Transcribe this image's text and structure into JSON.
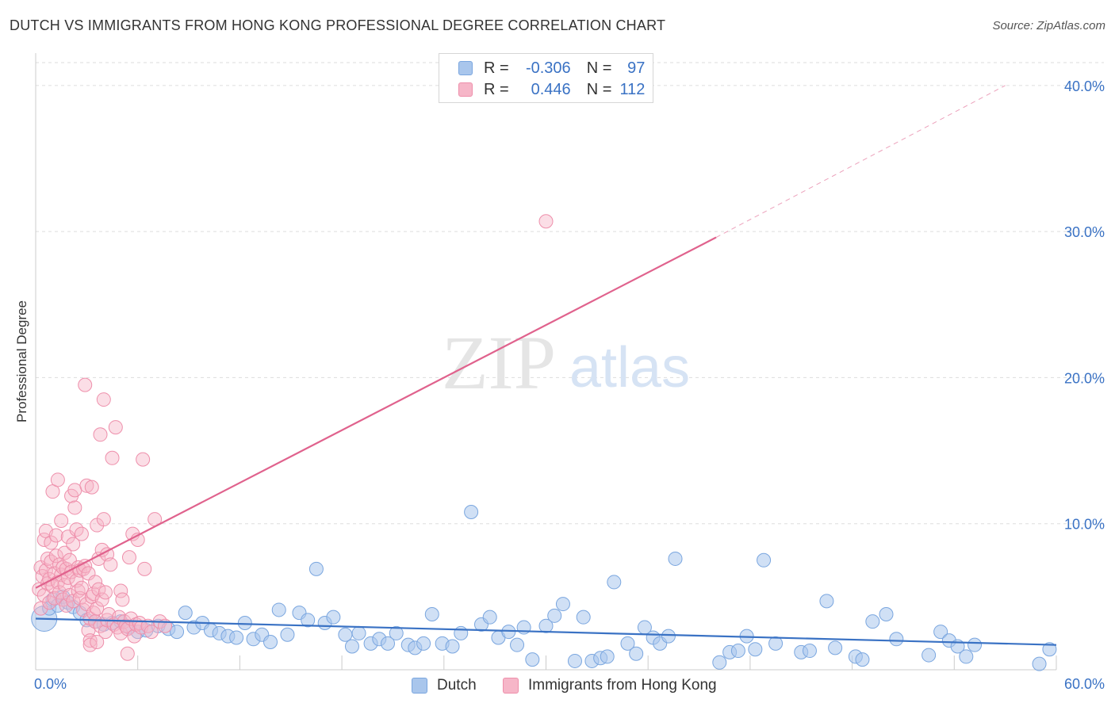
{
  "title": "DUTCH VS IMMIGRANTS FROM HONG KONG PROFESSIONAL DEGREE CORRELATION CHART",
  "source": "Source: ZipAtlas.com",
  "watermark": {
    "zip": "ZIP",
    "atlas": "atlas"
  },
  "legend": {
    "r_label": "R =",
    "n_label": "N =",
    "dutch": {
      "r": "-0.306",
      "n": "97"
    },
    "hk": {
      "r": "0.446",
      "n": "112"
    }
  },
  "colors": {
    "dutch_fill": "#a9c6ec",
    "dutch_stroke": "#7aa6df",
    "dutch_line": "#3a72c4",
    "hk_fill": "#f6b6c8",
    "hk_stroke": "#ee8fab",
    "hk_line": "#e0628d",
    "axis_label": "#3a72c4",
    "grid": "#dddddd"
  },
  "chart_data": {
    "type": "scatter",
    "title": "DUTCH VS IMMIGRANTS FROM HONG KONG PROFESSIONAL DEGREE CORRELATION CHART",
    "xlabel": "",
    "ylabel": "Professional Degree",
    "xlim": [
      0,
      60
    ],
    "ylim": [
      0,
      42
    ],
    "x_tick_labels": [
      "0.0%",
      "60.0%"
    ],
    "y_ticks": [
      10,
      20,
      30,
      40
    ],
    "y_tick_labels": [
      "10.0%",
      "20.0%",
      "30.0%",
      "40.0%"
    ],
    "grid": true,
    "legend_entries": [
      "Dutch",
      "Immigrants from Hong Kong"
    ],
    "series": [
      {
        "name": "Dutch",
        "r": -0.306,
        "n": 97,
        "trend": {
          "x0": 0,
          "y0": 3.5,
          "x1": 60,
          "y1": 1.7
        },
        "points": [
          {
            "x": 0.5,
            "y": 3.5,
            "big": true
          },
          {
            "x": 0.8,
            "y": 4.2
          },
          {
            "x": 1.0,
            "y": 4.8
          },
          {
            "x": 1.3,
            "y": 4.4
          },
          {
            "x": 1.6,
            "y": 5.0
          },
          {
            "x": 1.9,
            "y": 4.6
          },
          {
            "x": 2.2,
            "y": 4.3
          },
          {
            "x": 2.6,
            "y": 3.9
          },
          {
            "x": 3.0,
            "y": 3.4
          },
          {
            "x": 3.5,
            "y": 3.3
          },
          {
            "x": 4.0,
            "y": 3.1
          },
          {
            "x": 4.5,
            "y": 3.2
          },
          {
            "x": 5.0,
            "y": 3.3
          },
          {
            "x": 5.5,
            "y": 2.9
          },
          {
            "x": 6.0,
            "y": 2.6
          },
          {
            "x": 6.5,
            "y": 2.7
          },
          {
            "x": 7.2,
            "y": 3.0
          },
          {
            "x": 7.8,
            "y": 2.8
          },
          {
            "x": 8.3,
            "y": 2.6
          },
          {
            "x": 8.8,
            "y": 3.9
          },
          {
            "x": 9.3,
            "y": 2.9
          },
          {
            "x": 9.8,
            "y": 3.2
          },
          {
            "x": 10.3,
            "y": 2.7
          },
          {
            "x": 10.8,
            "y": 2.5
          },
          {
            "x": 11.3,
            "y": 2.3
          },
          {
            "x": 11.8,
            "y": 2.2
          },
          {
            "x": 12.3,
            "y": 3.2
          },
          {
            "x": 12.8,
            "y": 2.1
          },
          {
            "x": 13.3,
            "y": 2.4
          },
          {
            "x": 13.8,
            "y": 1.9
          },
          {
            "x": 14.3,
            "y": 4.1
          },
          {
            "x": 14.8,
            "y": 2.4
          },
          {
            "x": 15.5,
            "y": 3.9
          },
          {
            "x": 16.0,
            "y": 3.4
          },
          {
            "x": 16.5,
            "y": 6.9
          },
          {
            "x": 17.0,
            "y": 3.2
          },
          {
            "x": 17.5,
            "y": 3.6
          },
          {
            "x": 18.2,
            "y": 2.4
          },
          {
            "x": 18.6,
            "y": 1.6
          },
          {
            "x": 19.0,
            "y": 2.5
          },
          {
            "x": 19.7,
            "y": 1.8
          },
          {
            "x": 20.2,
            "y": 2.1
          },
          {
            "x": 20.7,
            "y": 1.8
          },
          {
            "x": 21.2,
            "y": 2.5
          },
          {
            "x": 21.9,
            "y": 1.7
          },
          {
            "x": 22.3,
            "y": 1.5
          },
          {
            "x": 22.8,
            "y": 1.8
          },
          {
            "x": 23.3,
            "y": 3.8
          },
          {
            "x": 23.9,
            "y": 1.8
          },
          {
            "x": 24.5,
            "y": 1.6
          },
          {
            "x": 25.0,
            "y": 2.5
          },
          {
            "x": 25.6,
            "y": 10.8
          },
          {
            "x": 26.2,
            "y": 3.1
          },
          {
            "x": 26.7,
            "y": 3.6
          },
          {
            "x": 27.2,
            "y": 2.2
          },
          {
            "x": 27.8,
            "y": 2.6
          },
          {
            "x": 28.3,
            "y": 1.7
          },
          {
            "x": 28.7,
            "y": 2.9
          },
          {
            "x": 29.2,
            "y": 0.7
          },
          {
            "x": 30.0,
            "y": 3.0
          },
          {
            "x": 30.5,
            "y": 3.7
          },
          {
            "x": 31.0,
            "y": 4.5
          },
          {
            "x": 31.7,
            "y": 0.6
          },
          {
            "x": 32.2,
            "y": 3.6
          },
          {
            "x": 32.7,
            "y": 0.6
          },
          {
            "x": 33.2,
            "y": 0.8
          },
          {
            "x": 33.6,
            "y": 0.9
          },
          {
            "x": 34.0,
            "y": 6.0
          },
          {
            "x": 34.8,
            "y": 1.8
          },
          {
            "x": 35.3,
            "y": 1.1
          },
          {
            "x": 35.8,
            "y": 2.9
          },
          {
            "x": 36.3,
            "y": 2.2
          },
          {
            "x": 36.7,
            "y": 1.8
          },
          {
            "x": 37.2,
            "y": 2.3
          },
          {
            "x": 37.6,
            "y": 7.6
          },
          {
            "x": 40.2,
            "y": 0.5
          },
          {
            "x": 40.8,
            "y": 1.2
          },
          {
            "x": 41.3,
            "y": 1.3
          },
          {
            "x": 41.8,
            "y": 2.3
          },
          {
            "x": 42.3,
            "y": 1.4
          },
          {
            "x": 42.8,
            "y": 7.5
          },
          {
            "x": 43.5,
            "y": 1.8
          },
          {
            "x": 45.0,
            "y": 1.2
          },
          {
            "x": 45.5,
            "y": 1.3
          },
          {
            "x": 46.5,
            "y": 4.7
          },
          {
            "x": 47.0,
            "y": 1.5
          },
          {
            "x": 48.2,
            "y": 0.9
          },
          {
            "x": 48.6,
            "y": 0.7
          },
          {
            "x": 49.2,
            "y": 3.3
          },
          {
            "x": 50.0,
            "y": 3.8
          },
          {
            "x": 50.6,
            "y": 2.1
          },
          {
            "x": 52.5,
            "y": 1.0
          },
          {
            "x": 53.2,
            "y": 2.6
          },
          {
            "x": 53.7,
            "y": 2.0
          },
          {
            "x": 54.2,
            "y": 1.6
          },
          {
            "x": 54.7,
            "y": 0.9
          },
          {
            "x": 55.2,
            "y": 1.7
          },
          {
            "x": 59.0,
            "y": 0.4
          },
          {
            "x": 59.6,
            "y": 1.4
          }
        ]
      },
      {
        "name": "Immigrants from Hong Kong",
        "r": 0.446,
        "n": 112,
        "trend": {
          "x0": 0,
          "y0": 5.6,
          "x1": 40,
          "y1": 29.6
        },
        "trend_extension": {
          "x0": 40,
          "y0": 29.6,
          "x1": 57,
          "y1": 40.0
        },
        "points": [
          {
            "x": 0.2,
            "y": 5.5
          },
          {
            "x": 0.3,
            "y": 7.0
          },
          {
            "x": 0.3,
            "y": 4.2
          },
          {
            "x": 0.4,
            "y": 6.4
          },
          {
            "x": 0.5,
            "y": 5.1
          },
          {
            "x": 0.5,
            "y": 8.9
          },
          {
            "x": 0.6,
            "y": 6.8
          },
          {
            "x": 0.6,
            "y": 9.5
          },
          {
            "x": 0.7,
            "y": 5.9
          },
          {
            "x": 0.7,
            "y": 7.6
          },
          {
            "x": 0.8,
            "y": 6.2
          },
          {
            "x": 0.8,
            "y": 4.6
          },
          {
            "x": 0.9,
            "y": 7.4
          },
          {
            "x": 0.9,
            "y": 8.7
          },
          {
            "x": 1.0,
            "y": 5.7
          },
          {
            "x": 1.0,
            "y": 12.2
          },
          {
            "x": 1.1,
            "y": 6.6
          },
          {
            "x": 1.1,
            "y": 4.9
          },
          {
            "x": 1.2,
            "y": 7.8
          },
          {
            "x": 1.2,
            "y": 9.2
          },
          {
            "x": 1.3,
            "y": 6.0
          },
          {
            "x": 1.3,
            "y": 13.0
          },
          {
            "x": 1.4,
            "y": 5.3
          },
          {
            "x": 1.4,
            "y": 7.2
          },
          {
            "x": 1.5,
            "y": 10.2
          },
          {
            "x": 1.5,
            "y": 6.5
          },
          {
            "x": 1.6,
            "y": 4.8
          },
          {
            "x": 1.6,
            "y": 7.0
          },
          {
            "x": 1.7,
            "y": 5.8
          },
          {
            "x": 1.7,
            "y": 8.0
          },
          {
            "x": 1.8,
            "y": 6.9
          },
          {
            "x": 1.8,
            "y": 4.4
          },
          {
            "x": 1.9,
            "y": 9.1
          },
          {
            "x": 1.9,
            "y": 6.3
          },
          {
            "x": 2.0,
            "y": 5.1
          },
          {
            "x": 2.0,
            "y": 7.5
          },
          {
            "x": 2.1,
            "y": 11.9
          },
          {
            "x": 2.1,
            "y": 6.7
          },
          {
            "x": 2.2,
            "y": 4.7
          },
          {
            "x": 2.2,
            "y": 8.6
          },
          {
            "x": 2.3,
            "y": 12.3
          },
          {
            "x": 2.3,
            "y": 11.1
          },
          {
            "x": 2.4,
            "y": 6.1
          },
          {
            "x": 2.4,
            "y": 9.6
          },
          {
            "x": 2.5,
            "y": 7.0
          },
          {
            "x": 2.5,
            "y": 5.4
          },
          {
            "x": 2.6,
            "y": 4.9
          },
          {
            "x": 2.6,
            "y": 6.8
          },
          {
            "x": 2.7,
            "y": 9.3
          },
          {
            "x": 2.7,
            "y": 5.6
          },
          {
            "x": 2.8,
            "y": 6.9
          },
          {
            "x": 2.8,
            "y": 4.1
          },
          {
            "x": 2.9,
            "y": 19.5
          },
          {
            "x": 2.9,
            "y": 7.1
          },
          {
            "x": 3.0,
            "y": 4.5
          },
          {
            "x": 3.0,
            "y": 12.6
          },
          {
            "x": 3.1,
            "y": 6.6
          },
          {
            "x": 3.1,
            "y": 2.7
          },
          {
            "x": 3.2,
            "y": 3.5
          },
          {
            "x": 3.2,
            "y": 2.0
          },
          {
            "x": 3.3,
            "y": 5.0
          },
          {
            "x": 3.3,
            "y": 12.5
          },
          {
            "x": 3.4,
            "y": 3.9
          },
          {
            "x": 3.4,
            "y": 5.2
          },
          {
            "x": 3.5,
            "y": 3.3
          },
          {
            "x": 3.5,
            "y": 6.0
          },
          {
            "x": 3.6,
            "y": 4.2
          },
          {
            "x": 3.6,
            "y": 9.9
          },
          {
            "x": 3.7,
            "y": 5.5
          },
          {
            "x": 3.7,
            "y": 7.6
          },
          {
            "x": 3.8,
            "y": 3.0
          },
          {
            "x": 3.8,
            "y": 16.1
          },
          {
            "x": 3.9,
            "y": 8.2
          },
          {
            "x": 3.9,
            "y": 4.8
          },
          {
            "x": 4.0,
            "y": 18.5
          },
          {
            "x": 4.0,
            "y": 10.3
          },
          {
            "x": 4.1,
            "y": 5.3
          },
          {
            "x": 4.1,
            "y": 2.6
          },
          {
            "x": 4.2,
            "y": 7.9
          },
          {
            "x": 4.2,
            "y": 3.4
          },
          {
            "x": 4.3,
            "y": 3.8
          },
          {
            "x": 4.4,
            "y": 7.2
          },
          {
            "x": 4.5,
            "y": 14.5
          },
          {
            "x": 4.6,
            "y": 3.1
          },
          {
            "x": 4.7,
            "y": 16.6
          },
          {
            "x": 4.8,
            "y": 2.9
          },
          {
            "x": 4.9,
            "y": 3.6
          },
          {
            "x": 5.0,
            "y": 5.4
          },
          {
            "x": 5.0,
            "y": 2.5
          },
          {
            "x": 5.1,
            "y": 4.8
          },
          {
            "x": 5.2,
            "y": 3.3
          },
          {
            "x": 5.3,
            "y": 3.0
          },
          {
            "x": 5.4,
            "y": 2.8
          },
          {
            "x": 5.5,
            "y": 7.7
          },
          {
            "x": 5.6,
            "y": 3.5
          },
          {
            "x": 5.7,
            "y": 9.3
          },
          {
            "x": 5.8,
            "y": 2.3
          },
          {
            "x": 5.9,
            "y": 3.1
          },
          {
            "x": 6.0,
            "y": 8.9
          },
          {
            "x": 6.1,
            "y": 3.2
          },
          {
            "x": 6.2,
            "y": 2.9
          },
          {
            "x": 6.3,
            "y": 14.4
          },
          {
            "x": 6.4,
            "y": 6.9
          },
          {
            "x": 6.6,
            "y": 3.0
          },
          {
            "x": 6.8,
            "y": 2.6
          },
          {
            "x": 7.0,
            "y": 10.3
          },
          {
            "x": 7.3,
            "y": 3.3
          },
          {
            "x": 7.6,
            "y": 3.0
          },
          {
            "x": 5.4,
            "y": 1.1
          },
          {
            "x": 3.2,
            "y": 1.7
          },
          {
            "x": 3.6,
            "y": 1.9
          },
          {
            "x": 30.0,
            "y": 30.7
          }
        ]
      }
    ]
  },
  "bottom_legend": {
    "dutch": "Dutch",
    "hk": "Immigrants from Hong Kong"
  }
}
